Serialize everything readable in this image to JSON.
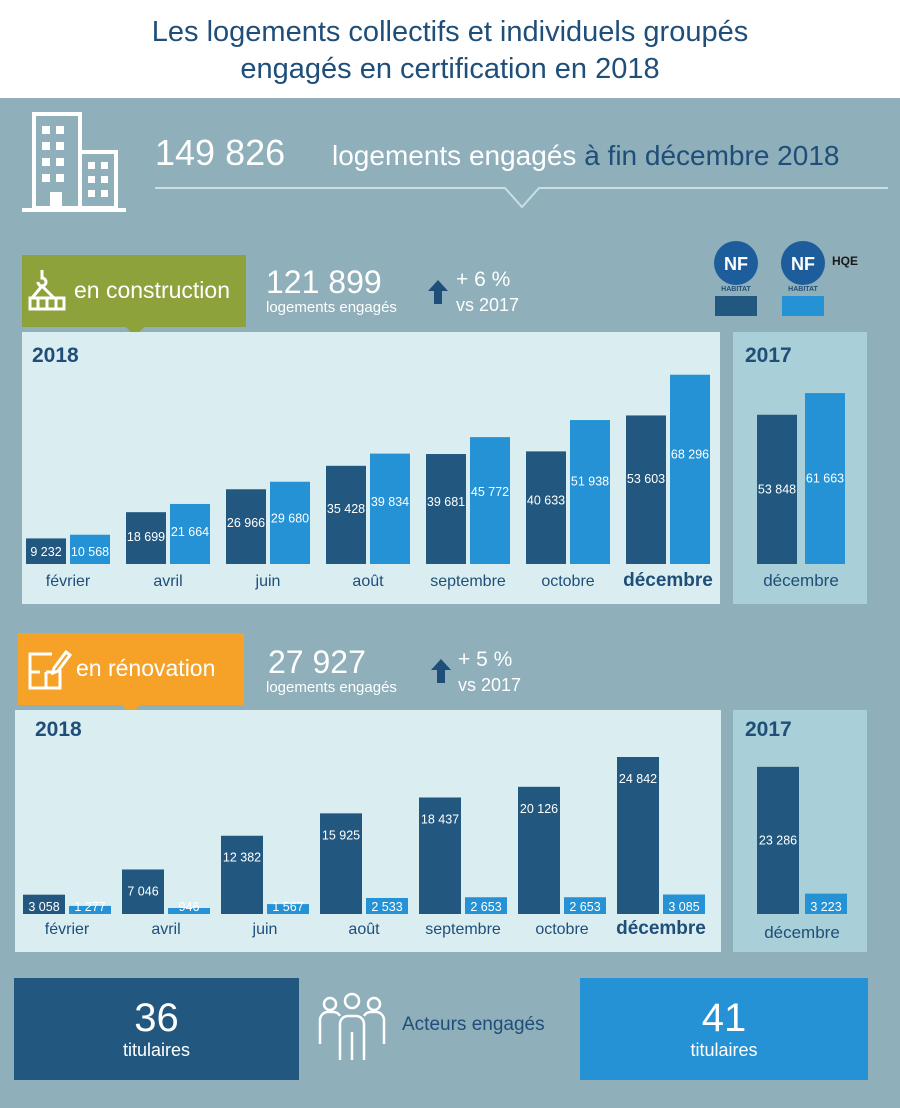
{
  "title": {
    "line1": "Les logements collectifs et individuels groupés",
    "line2": "engagés en certification en 2018"
  },
  "summary": {
    "total_value": "149 826",
    "total_label_a": "logements engagés ",
    "total_label_b": "à fin décembre 2018"
  },
  "legend": {
    "logo_nf_top": "NF",
    "logo_nf_sub": "HABITAT",
    "logo_hqe": "HQE",
    "colors": {
      "nf_habitat": "#22587f",
      "nf_habitat_hqe": "#2492d4"
    }
  },
  "construction": {
    "tag_label": "en construction",
    "total_value": "121 899",
    "total_label": "logements engagés",
    "change": "+ 6 %",
    "change_vs": "vs 2017",
    "year_2018": "2018",
    "year_2017": "2017"
  },
  "renovation": {
    "tag_label": "en rénovation",
    "total_value": "27 927",
    "total_label": "logements engagés",
    "change": "+ 5 %",
    "change_vs": "vs 2017",
    "year_2018": "2018",
    "year_2017": "2017"
  },
  "actors": {
    "label": "Acteurs engagés",
    "left_value": "36",
    "left_label": "titulaires",
    "right_value": "41",
    "right_label": "titulaires"
  },
  "chart_data": [
    {
      "type": "bar",
      "title": "",
      "categories": [
        "février",
        "avril",
        "juin",
        "août",
        "septembre",
        "octobre",
        "décembre"
      ],
      "category_labels": [
        "février",
        "avril",
        "juin",
        "août",
        "septembre",
        "octobre",
        "décembre"
      ],
      "series": [
        {
          "values": [
            9232,
            18699,
            26966,
            35428,
            39681,
            40633,
            53603
          ],
          "labels": [
            "9 232",
            "18 699",
            "26 966",
            "35 428",
            "39 681",
            "40 633",
            "53 603"
          ],
          "color": "#22587f"
        },
        {
          "values": [
            10568,
            21664,
            29680,
            39834,
            45772,
            51938,
            68296
          ],
          "labels": [
            "10 568",
            "21 664",
            "29 680",
            "39 834",
            "45 772",
            "51 938",
            "68 296"
          ],
          "color": "#2492d4"
        }
      ],
      "ylim": [
        0,
        70000
      ]
    },
    {
      "type": "bar",
      "title": "",
      "categories": [
        "décembre"
      ],
      "category_labels": [
        "décembre"
      ],
      "series": [
        {
          "values": [
            53848
          ],
          "labels": [
            "53 848"
          ],
          "color": "#22587f"
        },
        {
          "values": [
            61663
          ],
          "labels": [
            "61 663"
          ],
          "color": "#2492d4"
        }
      ],
      "ylim": [
        0,
        70000
      ]
    },
    {
      "type": "bar",
      "title": "",
      "categories": [
        "février",
        "avril",
        "juin",
        "août",
        "septembre",
        "octobre",
        "décembre"
      ],
      "category_labels": [
        "février",
        "avril",
        "juin",
        "août",
        "septembre",
        "octobre",
        "décembre"
      ],
      "series": [
        {
          "values": [
            3058,
            7046,
            12382,
            15925,
            18437,
            20126,
            24842
          ],
          "labels": [
            "3 058",
            "7 046",
            "12 382",
            "15 925",
            "18 437",
            "20 126",
            "24 842"
          ],
          "color": "#22587f"
        },
        {
          "values": [
            1277,
            946,
            1567,
            2533,
            2653,
            2653,
            3085
          ],
          "labels": [
            "1 277",
            "946",
            "1 567",
            "2 533",
            "2 653",
            "2 653",
            "3 085"
          ],
          "color": "#2492d4"
        }
      ],
      "ylim": [
        0,
        25000
      ]
    },
    {
      "type": "bar",
      "title": "",
      "categories": [
        "décembre"
      ],
      "category_labels": [
        "décembre"
      ],
      "series": [
        {
          "values": [
            23286
          ],
          "labels": [
            "23 286"
          ],
          "color": "#22587f"
        },
        {
          "values": [
            3223
          ],
          "labels": [
            "3 223"
          ],
          "color": "#2492d4"
        }
      ],
      "ylim": [
        0,
        25000
      ]
    }
  ]
}
